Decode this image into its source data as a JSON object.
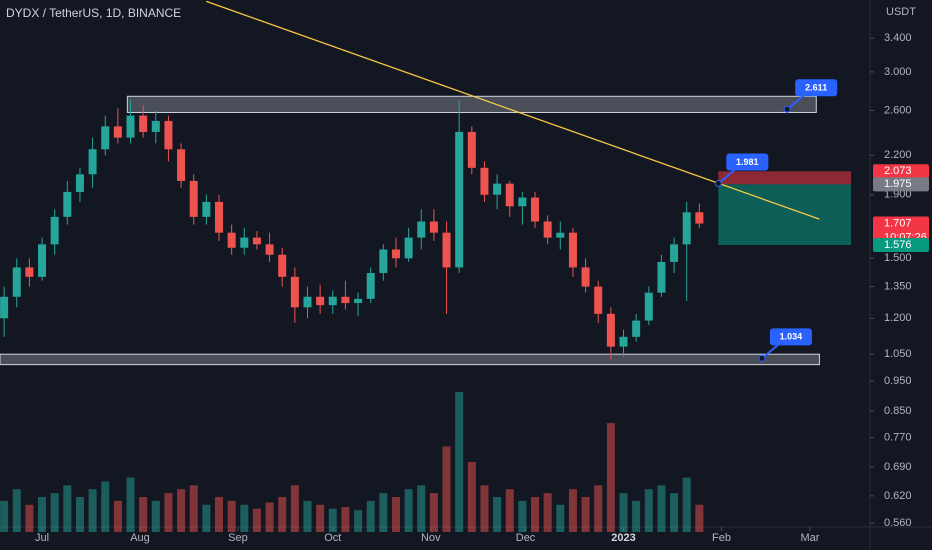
{
  "chart_data": {
    "type": "candlestick",
    "title": "DYDX / TetherUS, 1D, BINANCE",
    "y_axis_label": "USDT",
    "log_scale": true,
    "grid": false,
    "up_color": "#26a69a",
    "down_color": "#ef5350",
    "x": [
      -12,
      -8,
      -4,
      0,
      4,
      8,
      12,
      16,
      20,
      24,
      28,
      32,
      36,
      40,
      44,
      48,
      52,
      56,
      60,
      64,
      68,
      72,
      76,
      80,
      84,
      88,
      92,
      96,
      100,
      104,
      108,
      112,
      116,
      120,
      124,
      128,
      132,
      136,
      140,
      144,
      148,
      152,
      156,
      160,
      164,
      168,
      172,
      176,
      180,
      184,
      188,
      192,
      196,
      200,
      204,
      208
    ],
    "open": [
      1.2,
      1.3,
      1.45,
      1.4,
      1.58,
      1.75,
      1.92,
      2.05,
      2.25,
      2.45,
      2.35,
      2.55,
      2.4,
      2.5,
      2.25,
      2.0,
      1.75,
      1.85,
      1.65,
      1.56,
      1.62,
      1.58,
      1.52,
      1.4,
      1.25,
      1.3,
      1.26,
      1.3,
      1.27,
      1.29,
      1.42,
      1.55,
      1.5,
      1.62,
      1.72,
      1.65,
      1.45,
      2.4,
      2.1,
      1.9,
      1.98,
      1.82,
      1.88,
      1.72,
      1.62,
      1.65,
      1.45,
      1.35,
      1.22,
      1.08,
      1.12,
      1.19,
      1.32,
      1.48,
      1.58,
      1.78
    ],
    "high": [
      1.35,
      1.5,
      1.5,
      1.62,
      1.8,
      2.0,
      2.1,
      2.35,
      2.55,
      2.62,
      2.7,
      2.65,
      2.6,
      2.55,
      2.3,
      2.05,
      1.9,
      1.9,
      1.7,
      1.68,
      1.66,
      1.65,
      1.56,
      1.45,
      1.35,
      1.36,
      1.33,
      1.38,
      1.32,
      1.45,
      1.58,
      1.62,
      1.68,
      1.8,
      1.8,
      1.72,
      2.7,
      2.45,
      2.15,
      2.05,
      2.0,
      1.92,
      1.92,
      1.76,
      1.72,
      1.68,
      1.5,
      1.38,
      1.25,
      1.15,
      1.22,
      1.35,
      1.52,
      1.62,
      1.85,
      1.84
    ],
    "low": [
      1.12,
      1.25,
      1.35,
      1.38,
      1.52,
      1.7,
      1.85,
      1.95,
      2.2,
      2.3,
      2.3,
      2.35,
      2.3,
      2.15,
      1.95,
      1.7,
      1.7,
      1.6,
      1.52,
      1.52,
      1.55,
      1.48,
      1.35,
      1.18,
      1.2,
      1.22,
      1.22,
      1.24,
      1.21,
      1.27,
      1.38,
      1.45,
      1.48,
      1.55,
      1.6,
      1.22,
      1.42,
      2.05,
      1.85,
      1.8,
      1.75,
      1.7,
      1.68,
      1.58,
      1.55,
      1.4,
      1.32,
      1.18,
      1.03,
      1.04,
      1.1,
      1.17,
      1.3,
      1.42,
      1.28,
      1.68
    ],
    "close": [
      1.3,
      1.45,
      1.4,
      1.58,
      1.75,
      1.92,
      2.05,
      2.25,
      2.45,
      2.35,
      2.55,
      2.4,
      2.5,
      2.25,
      2.0,
      1.75,
      1.85,
      1.65,
      1.56,
      1.62,
      1.58,
      1.52,
      1.4,
      1.25,
      1.3,
      1.26,
      1.3,
      1.27,
      1.29,
      1.42,
      1.55,
      1.5,
      1.62,
      1.72,
      1.65,
      1.45,
      2.4,
      2.1,
      1.9,
      1.98,
      1.82,
      1.88,
      1.72,
      1.62,
      1.65,
      1.45,
      1.35,
      1.22,
      1.08,
      1.12,
      1.19,
      1.32,
      1.48,
      1.58,
      1.78,
      1.707
    ],
    "volume": [
      40,
      55,
      35,
      45,
      50,
      60,
      45,
      55,
      65,
      40,
      70,
      45,
      40,
      50,
      55,
      60,
      35,
      45,
      40,
      35,
      30,
      38,
      45,
      60,
      40,
      35,
      30,
      32,
      28,
      40,
      50,
      45,
      55,
      60,
      50,
      110,
      180,
      90,
      60,
      45,
      55,
      40,
      45,
      50,
      35,
      55,
      45,
      60,
      140,
      50,
      40,
      55,
      60,
      50,
      70,
      35
    ],
    "xlim": [
      -13.3,
      262.0
    ],
    "xticks": [
      {
        "value": 0,
        "label": "Jul"
      },
      {
        "value": 31,
        "label": "Aug"
      },
      {
        "value": 62,
        "label": "Sep"
      },
      {
        "value": 92,
        "label": "Oct"
      },
      {
        "value": 123,
        "label": "Nov"
      },
      {
        "value": 153,
        "label": "Dec"
      },
      {
        "value": 184,
        "label": "2023"
      },
      {
        "value": 215,
        "label": "Feb"
      },
      {
        "value": 243,
        "label": "Mar"
      }
    ],
    "ylim": [
      0.542,
      3.92
    ],
    "yticks": [
      {
        "value": 3.4,
        "label": "3.400"
      },
      {
        "value": 3,
        "label": "3.000"
      },
      {
        "value": 2.6,
        "label": "2.600"
      },
      {
        "value": 2.2,
        "label": "2.200"
      },
      {
        "value": 1.9,
        "label": "1.900"
      },
      {
        "value": 1.5,
        "label": "1.500"
      },
      {
        "value": 1.35,
        "label": "1.350"
      },
      {
        "value": 1.2,
        "label": "1.200"
      },
      {
        "value": 1.05,
        "label": "1.050"
      },
      {
        "value": 0.95,
        "label": "0.950"
      },
      {
        "value": 0.85,
        "label": "0.850"
      },
      {
        "value": 0.77,
        "label": "0.770"
      },
      {
        "value": 0.69,
        "label": "0.690"
      },
      {
        "value": 0.62,
        "label": "0.620"
      },
      {
        "value": 0.56,
        "label": "0.560"
      }
    ],
    "zones": [
      {
        "from": 27,
        "to": 245,
        "low": 2.58,
        "high": 2.74
      },
      {
        "from": -13.3,
        "to": 246,
        "low": 1.01,
        "high": 1.05
      }
    ],
    "trendline": {
      "x": [
        52,
        246
      ],
      "y": [
        3.9,
        1.735
      ],
      "color": "#f7c843"
    },
    "position": {
      "from": 214,
      "to": 256,
      "entry": 1.975,
      "stop": 2.073,
      "target": 1.576
    },
    "callouts": [
      {
        "x": 235.8,
        "value": 2.611
      },
      {
        "x": 214,
        "value": 1.981
      },
      {
        "x": 227.8,
        "value": 1.034
      }
    ],
    "countdown": "10:07:26"
  }
}
